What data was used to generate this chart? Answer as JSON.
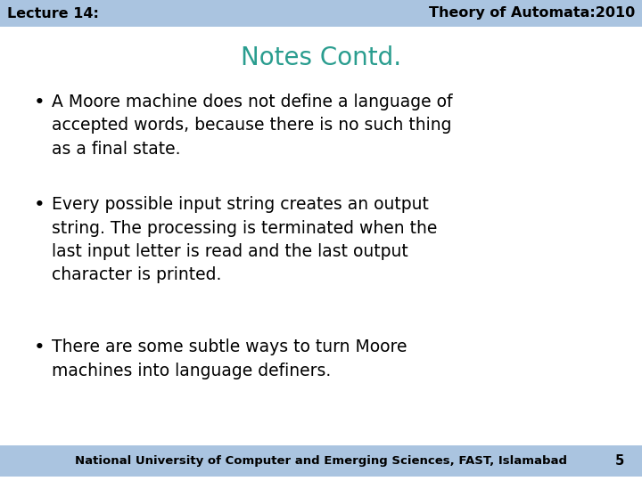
{
  "header_bg_color": "#aac4e0",
  "header_text_color": "#000000",
  "header_left": "Lecture 14:",
  "header_right": "Theory of Automata:2010",
  "header_fontsize": 11.5,
  "header_bold": true,
  "title": "Notes Contd.",
  "title_color": "#2a9d8f",
  "title_fontsize": 20,
  "body_bg_color": "#ffffff",
  "body_text_color": "#000000",
  "body_fontsize": 13.5,
  "bullets": [
    "A Moore machine does not define a language of\naccepted words, because there is no such thing\nas a final state.",
    "Every possible input string creates an output\nstring. The processing is terminated when the\nlast input letter is read and the last output\ncharacter is printed.",
    "There are some subtle ways to turn Moore\nmachines into language definers."
  ],
  "footer_bg_color": "#aac4e0",
  "footer_text": "National University of Computer and Emerging Sciences, FAST, Islamabad",
  "footer_page": "5",
  "footer_fontsize": 9.5,
  "footer_bold": true
}
